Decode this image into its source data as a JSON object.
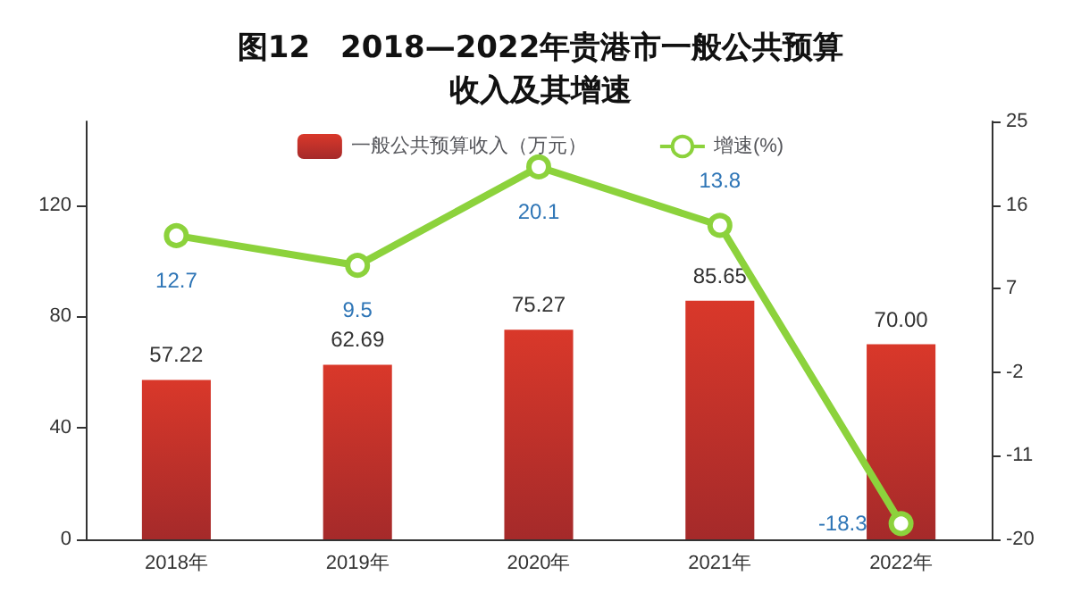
{
  "chart_data": {
    "type": "bar",
    "title": "图12　2018—2022年贵港市一般公共预算收入及其增速",
    "categories": [
      "2018年",
      "2019年",
      "2020年",
      "2021年",
      "2022年"
    ],
    "series": [
      {
        "name": "一般公共预算收入（万元）",
        "color": "#d9382a",
        "values": [
          57.22,
          62.69,
          75.27,
          85.65,
          70.0
        ],
        "value_labels": [
          "57.22",
          "62.69",
          "75.27",
          "85.65",
          "70.00"
        ]
      },
      {
        "name": "增速(%)",
        "type": "line",
        "axis": "y2",
        "color": "#8cd23c",
        "values": [
          12.7,
          9.5,
          20.1,
          13.8,
          -18.3
        ],
        "value_labels": [
          "12.7",
          "9.5",
          "20.1",
          "13.8",
          "-18.3"
        ]
      }
    ],
    "ylim": [
      0,
      150
    ],
    "yticks": [
      0,
      40,
      80,
      120
    ],
    "y2lim": [
      -20,
      25
    ],
    "y2ticks": [
      -20,
      -11,
      -2,
      7,
      16,
      25
    ],
    "legend": "top",
    "marker": "circle",
    "grid": false
  }
}
